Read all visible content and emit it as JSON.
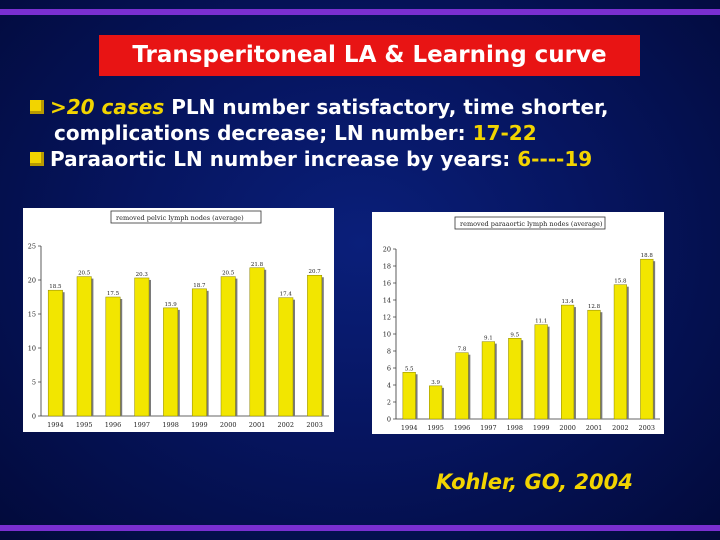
{
  "slide": {
    "title": "Transperitoneal LA & Learning curve",
    "bullets": [
      {
        "emph": ">20  cases",
        "text": " PLN number satisfactory, time shorter,",
        "cont": "complications decrease;  LN number: ",
        "cont_value": "17-22"
      },
      {
        "text": "Paraaortic LN number increase by years:   ",
        "value": "6----19"
      }
    ],
    "citation": "Kohler, GO, 2004"
  },
  "colors": {
    "background": "#061560",
    "title_bg": "#e81414",
    "accent": "#f2d400",
    "band": "#7a2fd0",
    "bar": "#f2e600"
  },
  "chart_data": [
    {
      "type": "bar",
      "title": "removed pelvic lymph nodes (average)",
      "categories": [
        "1994",
        "1995",
        "1996",
        "1997",
        "1998",
        "1999",
        "2000",
        "2001",
        "2002",
        "2003"
      ],
      "values": [
        18.5,
        20.5,
        17.5,
        20.3,
        15.9,
        18.7,
        20.5,
        21.8,
        17.4,
        20.7
      ],
      "ylim": [
        0,
        25
      ],
      "yticks": [
        "0",
        "5",
        "10",
        "15",
        "20",
        "25"
      ],
      "grid": false,
      "legend": "none"
    },
    {
      "type": "bar",
      "title": "removed paraaortic lymph nodes (average)",
      "categories": [
        "1994",
        "1995",
        "1996",
        "1997",
        "1998",
        "1999",
        "2000",
        "2001",
        "2002",
        "2003"
      ],
      "values": [
        5.5,
        3.9,
        7.8,
        9.1,
        9.5,
        11.1,
        13.4,
        12.8,
        15.8,
        18.8
      ],
      "ylim": [
        0,
        20
      ],
      "yticks": [
        "0",
        "2",
        "4",
        "6",
        "8",
        "10",
        "12",
        "14",
        "16",
        "18",
        "20"
      ],
      "grid": false,
      "legend": "none"
    }
  ]
}
